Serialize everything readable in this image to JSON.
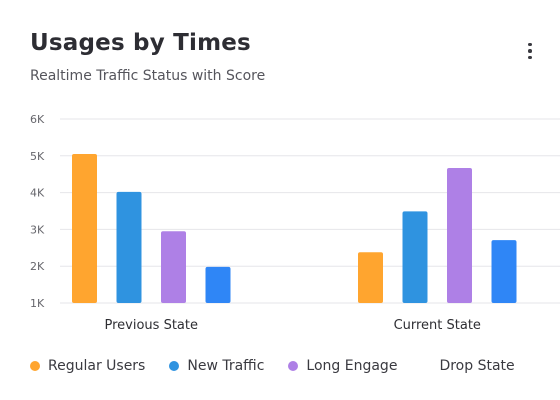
{
  "header": {
    "title": "Usages by Times",
    "subtitle": "Realtime Traffic Status with Score",
    "menu_icon": "more-vertical-icon"
  },
  "colors": {
    "Regular Users": "#ffa52f",
    "New Traffic": "#2f93e0",
    "Long Engage": "#ae80e6",
    "Drop State": "#2f86f6",
    "grid": "#e6e6ea"
  },
  "chart_data": {
    "type": "bar",
    "title": "Usages by Times",
    "subtitle": "Realtime Traffic Status with Score",
    "categories": [
      "Previous State",
      "Current State"
    ],
    "series": [
      {
        "name": "Regular Users",
        "values": [
          5050,
          2380
        ]
      },
      {
        "name": "New Traffic",
        "values": [
          4020,
          3490
        ]
      },
      {
        "name": "Long Engage",
        "values": [
          2950,
          4670
        ]
      },
      {
        "name": "Drop State",
        "values": [
          1980,
          2710
        ]
      }
    ],
    "ylim": [
      1000,
      6000
    ],
    "yticks": [
      "1K",
      "2K",
      "3K",
      "4K",
      "5K",
      "6K"
    ],
    "grid": true,
    "legend_position": "bottom"
  }
}
